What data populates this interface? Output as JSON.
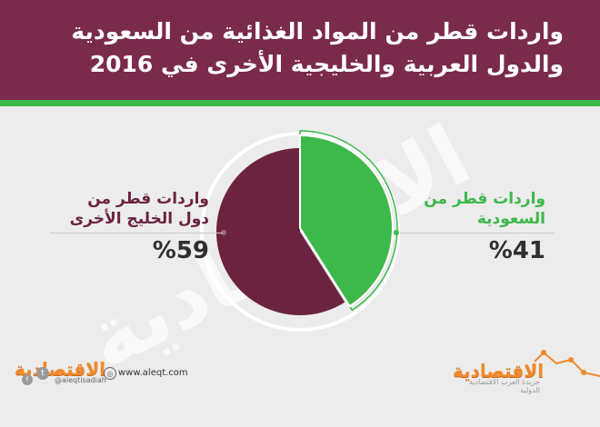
{
  "header": {
    "title_line1": "واردات قطر من المواد الغذائية من السعودية",
    "title_line2": "والدول العربية والخليجية الأخرى في 2016"
  },
  "watermark": "الاقتصادية",
  "chart_data": {
    "type": "pie",
    "categories": [
      "واردات قطر من السعودية",
      "واردات قطر من دول الخليج الأخرى"
    ],
    "values": [
      41,
      59
    ],
    "labels": {
      "right": {
        "line1": "واردات قطر من",
        "line2": "السعودية",
        "pct": "%41"
      },
      "left": {
        "line1": "واردات قطر من",
        "line2": "دول الخليج الأخرى",
        "pct": "%59"
      }
    },
    "colors": [
      "#3db84a",
      "#6b2340"
    ]
  },
  "footer": {
    "brand": "الاقتصادية",
    "brand_sub": "جريدة العرب الاقتصادية الدولية",
    "handle": "@aleqtisadiah",
    "website": "www.aleqt.com"
  }
}
